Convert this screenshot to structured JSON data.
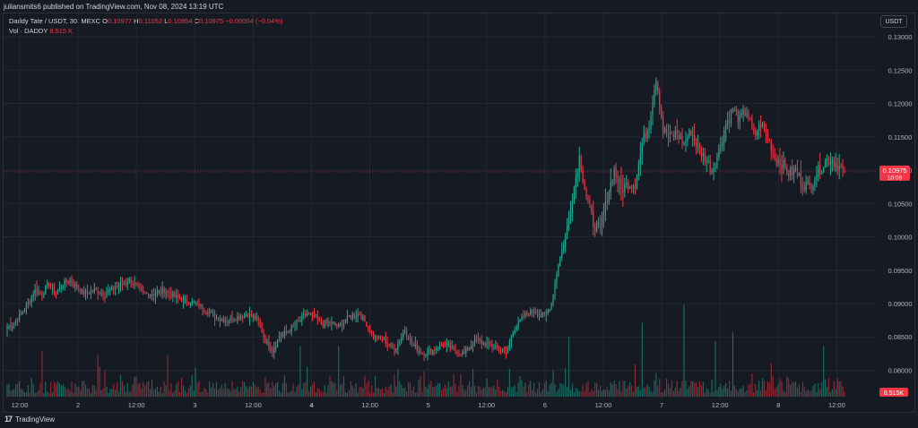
{
  "header": {
    "published": "juliansmits6 published on TradingView.com, Nov 08, 2024 13:19 UTC"
  },
  "legend": {
    "symbol": "Daddy Tate / USDT, 30, MEXC",
    "o_label": "O",
    "o_value": "0.10977",
    "h_label": "H",
    "h_value": "0.11052",
    "l_label": "L",
    "l_value": "0.10954",
    "c_label": "C",
    "c_value": "0.10975",
    "change": "−0.00004 (−0.04%)",
    "vol_label": "Vol · DADDY",
    "vol_value": "8.515 K"
  },
  "currency_button": "USDT",
  "price_tag": {
    "price": "0.10975",
    "countdown": "10:09"
  },
  "volume_tag": "8.515K",
  "footer": {
    "brand": "TradingView",
    "logo": "17"
  },
  "colors": {
    "up": "#22ab94",
    "down": "#f23645",
    "bg": "#161a23",
    "grid": "#232733"
  },
  "chart_data": {
    "type": "candlestick",
    "price_axis": {
      "ticks": [
        "0.13000",
        "0.12500",
        "0.12000",
        "0.11500",
        "0.11000",
        "0.10500",
        "0.10000",
        "0.09500",
        "0.09000",
        "0.08500",
        "0.08000"
      ],
      "ylim": [
        0.0755,
        0.1335
      ]
    },
    "time_axis": {
      "labels": [
        "12:00",
        "2",
        "12:00",
        "3",
        "12:00",
        "4",
        "12:00",
        "5",
        "12:00",
        "6",
        "12:00",
        "7",
        "12:00",
        "8",
        "12:00"
      ],
      "bold": [
        "4"
      ]
    },
    "last_price": 0.10975,
    "keypoints": [
      [
        0,
        0.0865
      ],
      [
        4,
        0.087
      ],
      [
        8,
        0.0885
      ],
      [
        12,
        0.09
      ],
      [
        16,
        0.092
      ],
      [
        20,
        0.0915
      ],
      [
        24,
        0.093
      ],
      [
        28,
        0.0915
      ],
      [
        32,
        0.093
      ],
      [
        36,
        0.0935
      ],
      [
        40,
        0.0925
      ],
      [
        44,
        0.0915
      ],
      [
        50,
        0.092
      ],
      [
        56,
        0.0915
      ],
      [
        62,
        0.0925
      ],
      [
        66,
        0.093
      ],
      [
        70,
        0.0935
      ],
      [
        74,
        0.0925
      ],
      [
        78,
        0.0915
      ],
      [
        84,
        0.0915
      ],
      [
        90,
        0.092
      ],
      [
        96,
        0.091
      ],
      [
        102,
        0.0905
      ],
      [
        108,
        0.09
      ],
      [
        114,
        0.089
      ],
      [
        120,
        0.088
      ],
      [
        126,
        0.0875
      ],
      [
        132,
        0.088
      ],
      [
        138,
        0.0885
      ],
      [
        144,
        0.0875
      ],
      [
        148,
        0.0845
      ],
      [
        152,
        0.083
      ],
      [
        156,
        0.085
      ],
      [
        162,
        0.086
      ],
      [
        168,
        0.0875
      ],
      [
        172,
        0.0885
      ],
      [
        176,
        0.088
      ],
      [
        180,
        0.087
      ],
      [
        186,
        0.087
      ],
      [
        190,
        0.0865
      ],
      [
        196,
        0.088
      ],
      [
        202,
        0.0885
      ],
      [
        206,
        0.087
      ],
      [
        210,
        0.085
      ],
      [
        216,
        0.0845
      ],
      [
        222,
        0.083
      ],
      [
        228,
        0.086
      ],
      [
        232,
        0.084
      ],
      [
        238,
        0.0825
      ],
      [
        244,
        0.083
      ],
      [
        250,
        0.084
      ],
      [
        256,
        0.083
      ],
      [
        262,
        0.0825
      ],
      [
        268,
        0.0845
      ],
      [
        274,
        0.084
      ],
      [
        280,
        0.0835
      ],
      [
        286,
        0.0825
      ],
      [
        290,
        0.086
      ],
      [
        296,
        0.088
      ],
      [
        302,
        0.089
      ],
      [
        308,
        0.088
      ],
      [
        312,
        0.09
      ],
      [
        316,
        0.096
      ],
      [
        320,
        0.1
      ],
      [
        324,
        0.106
      ],
      [
        328,
        0.112
      ],
      [
        332,
        0.106
      ],
      [
        336,
        0.102
      ],
      [
        340,
        0.101
      ],
      [
        344,
        0.106
      ],
      [
        348,
        0.11
      ],
      [
        352,
        0.107
      ],
      [
        356,
        0.108
      ],
      [
        360,
        0.108
      ],
      [
        364,
        0.114
      ],
      [
        368,
        0.117
      ],
      [
        372,
        0.124
      ],
      [
        376,
        0.116
      ],
      [
        380,
        0.115
      ],
      [
        384,
        0.1155
      ],
      [
        388,
        0.114
      ],
      [
        392,
        0.116
      ],
      [
        396,
        0.113
      ],
      [
        400,
        0.112
      ],
      [
        404,
        0.11
      ],
      [
        408,
        0.113
      ],
      [
        412,
        0.117
      ],
      [
        416,
        0.119
      ],
      [
        420,
        0.1175
      ],
      [
        424,
        0.119
      ],
      [
        428,
        0.115
      ],
      [
        432,
        0.117
      ],
      [
        436,
        0.115
      ],
      [
        440,
        0.112
      ],
      [
        444,
        0.111
      ],
      [
        448,
        0.1095
      ],
      [
        452,
        0.11
      ],
      [
        456,
        0.108
      ],
      [
        460,
        0.1075
      ],
      [
        464,
        0.1095
      ],
      [
        468,
        0.111
      ],
      [
        472,
        0.1118
      ],
      [
        476,
        0.1108
      ],
      [
        480,
        0.10975
      ]
    ],
    "volume_spikes": {
      "20": 0.5,
      "52": 0.45,
      "92": 0.45,
      "168": 0.55,
      "190": 0.55,
      "322": 0.65,
      "360": 0.35,
      "364": 0.8,
      "388": 1.0,
      "406": 0.6,
      "416": 0.7,
      "468": 0.55,
      "476": 0.2
    }
  }
}
